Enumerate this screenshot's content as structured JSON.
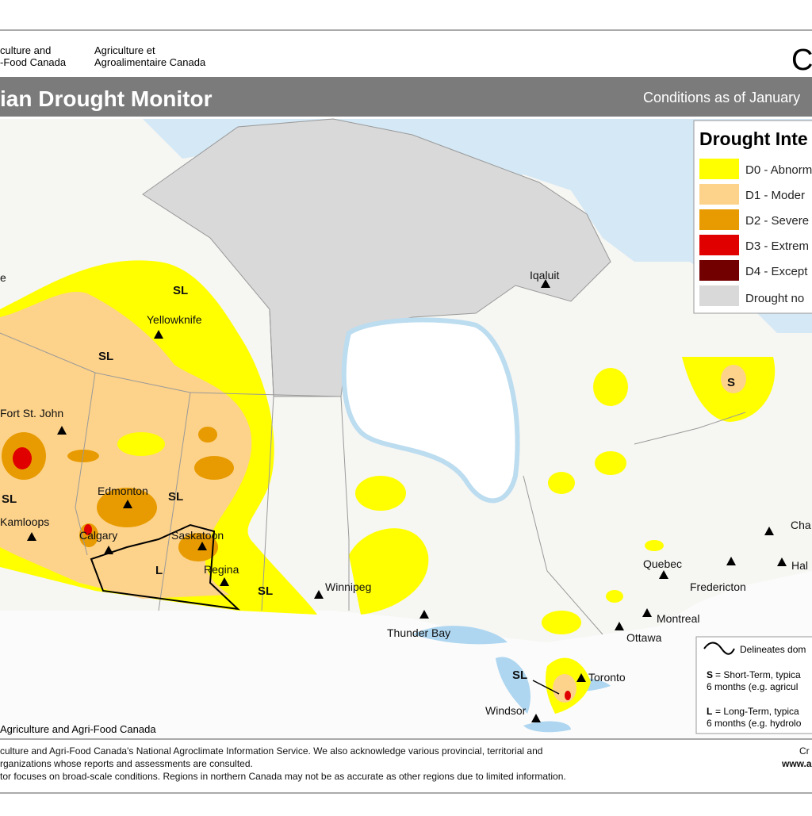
{
  "header": {
    "org_en": [
      "culture and",
      "-Food Canada"
    ],
    "org_fr": [
      "Agriculture et",
      "Agroalimentaire Canada"
    ],
    "wordmark": "C",
    "title": "ian Drought Monitor",
    "subtitle": "Conditions as of January"
  },
  "legend": {
    "title": "Drought Inte",
    "items": [
      "D0 - Abnorm",
      "D1 - Moder",
      "D2 - Severe",
      "D3 - Extrem",
      "D4 - Except",
      "Drought no"
    ]
  },
  "cities": [
    "Iqaluit",
    "Yellowknife",
    "Fort St. John",
    "Edmonton",
    "Kamloops",
    "Calgary",
    "Saskatoon",
    "Regina",
    "Winnipeg",
    "Thunder Bay",
    "Quebec",
    "Fredericton",
    "Montreal",
    "Ottawa",
    "Toronto",
    "Windsor",
    "Cha",
    "Hal",
    "e"
  ],
  "map_labels": [
    "SL",
    "SL",
    "SL",
    "SL",
    "L",
    "SL",
    "S",
    "SL"
  ],
  "map_credit": "Agriculture and Agri-Food Canada",
  "notes": {
    "delineates": "Delineates dom",
    "short_key": "S",
    "short_text": "= Short-Term, typica",
    "short_line2": "6 months (e.g. agricul",
    "long_key": "L",
    "long_text": "= Long-Term, typica",
    "long_line2": "6 months (e.g. hydrolo"
  },
  "footer": {
    "lines": [
      "culture and Agri-Food Canada's National Agroclimate Information Service.  We also acknowledge various provincial, territorial and",
      "rganizations whose reports and assessments are consulted.",
      "tor focuses on broad-scale conditions.  Regions in northern Canada may not be as accurate as other regions due to limited information."
    ],
    "credit": [
      "Cr",
      "www.a"
    ]
  }
}
